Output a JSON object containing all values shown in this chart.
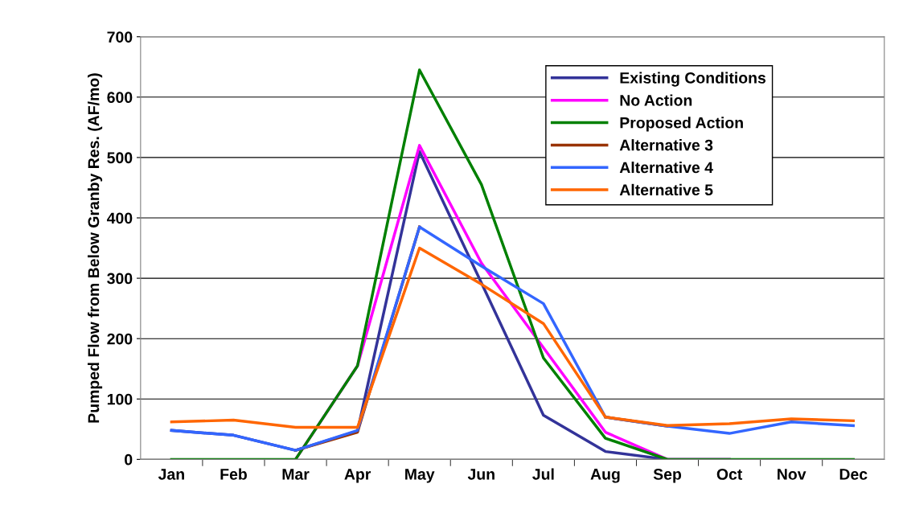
{
  "chart_data": {
    "type": "line",
    "ylabel": "Pumped Flow from Below Granby Res. (AF/mo)",
    "categories": [
      "Jan",
      "Feb",
      "Mar",
      "Apr",
      "May",
      "Jun",
      "Jul",
      "Aug",
      "Sep",
      "Oct",
      "Nov",
      "Dec"
    ],
    "ylim": [
      0,
      700
    ],
    "yticks": [
      0,
      100,
      200,
      300,
      400,
      500,
      600,
      700
    ],
    "grid": "y",
    "legend": "top right",
    "marker": "none",
    "line_style": "solid",
    "series": [
      {
        "name": "Existing Conditions",
        "color": "#333399",
        "values": [
          48,
          40,
          15,
          47,
          510,
          292,
          73,
          13,
          0,
          0,
          null,
          null
        ]
      },
      {
        "name": "No Action",
        "color": "#ff00ff",
        "values": [
          null,
          null,
          0,
          155,
          520,
          325,
          185,
          45,
          0,
          0,
          null,
          null
        ]
      },
      {
        "name": "Proposed Action",
        "color": "#008000",
        "values": [
          0,
          0,
          0,
          155,
          645,
          455,
          168,
          35,
          0,
          0,
          0,
          0
        ]
      },
      {
        "name": "Alternative 3",
        "color": "#993300",
        "values": [
          null,
          null,
          15,
          45,
          385,
          null,
          null,
          70,
          55,
          null,
          null,
          null
        ]
      },
      {
        "name": "Alternative 4",
        "color": "#3366ff",
        "values": [
          48,
          40,
          15,
          48,
          385,
          320,
          258,
          70,
          55,
          43,
          62,
          56
        ]
      },
      {
        "name": "Alternative 5",
        "color": "#ff6600",
        "values": [
          62,
          65,
          53,
          53,
          350,
          290,
          225,
          70,
          56,
          59,
          67,
          64
        ]
      }
    ]
  }
}
